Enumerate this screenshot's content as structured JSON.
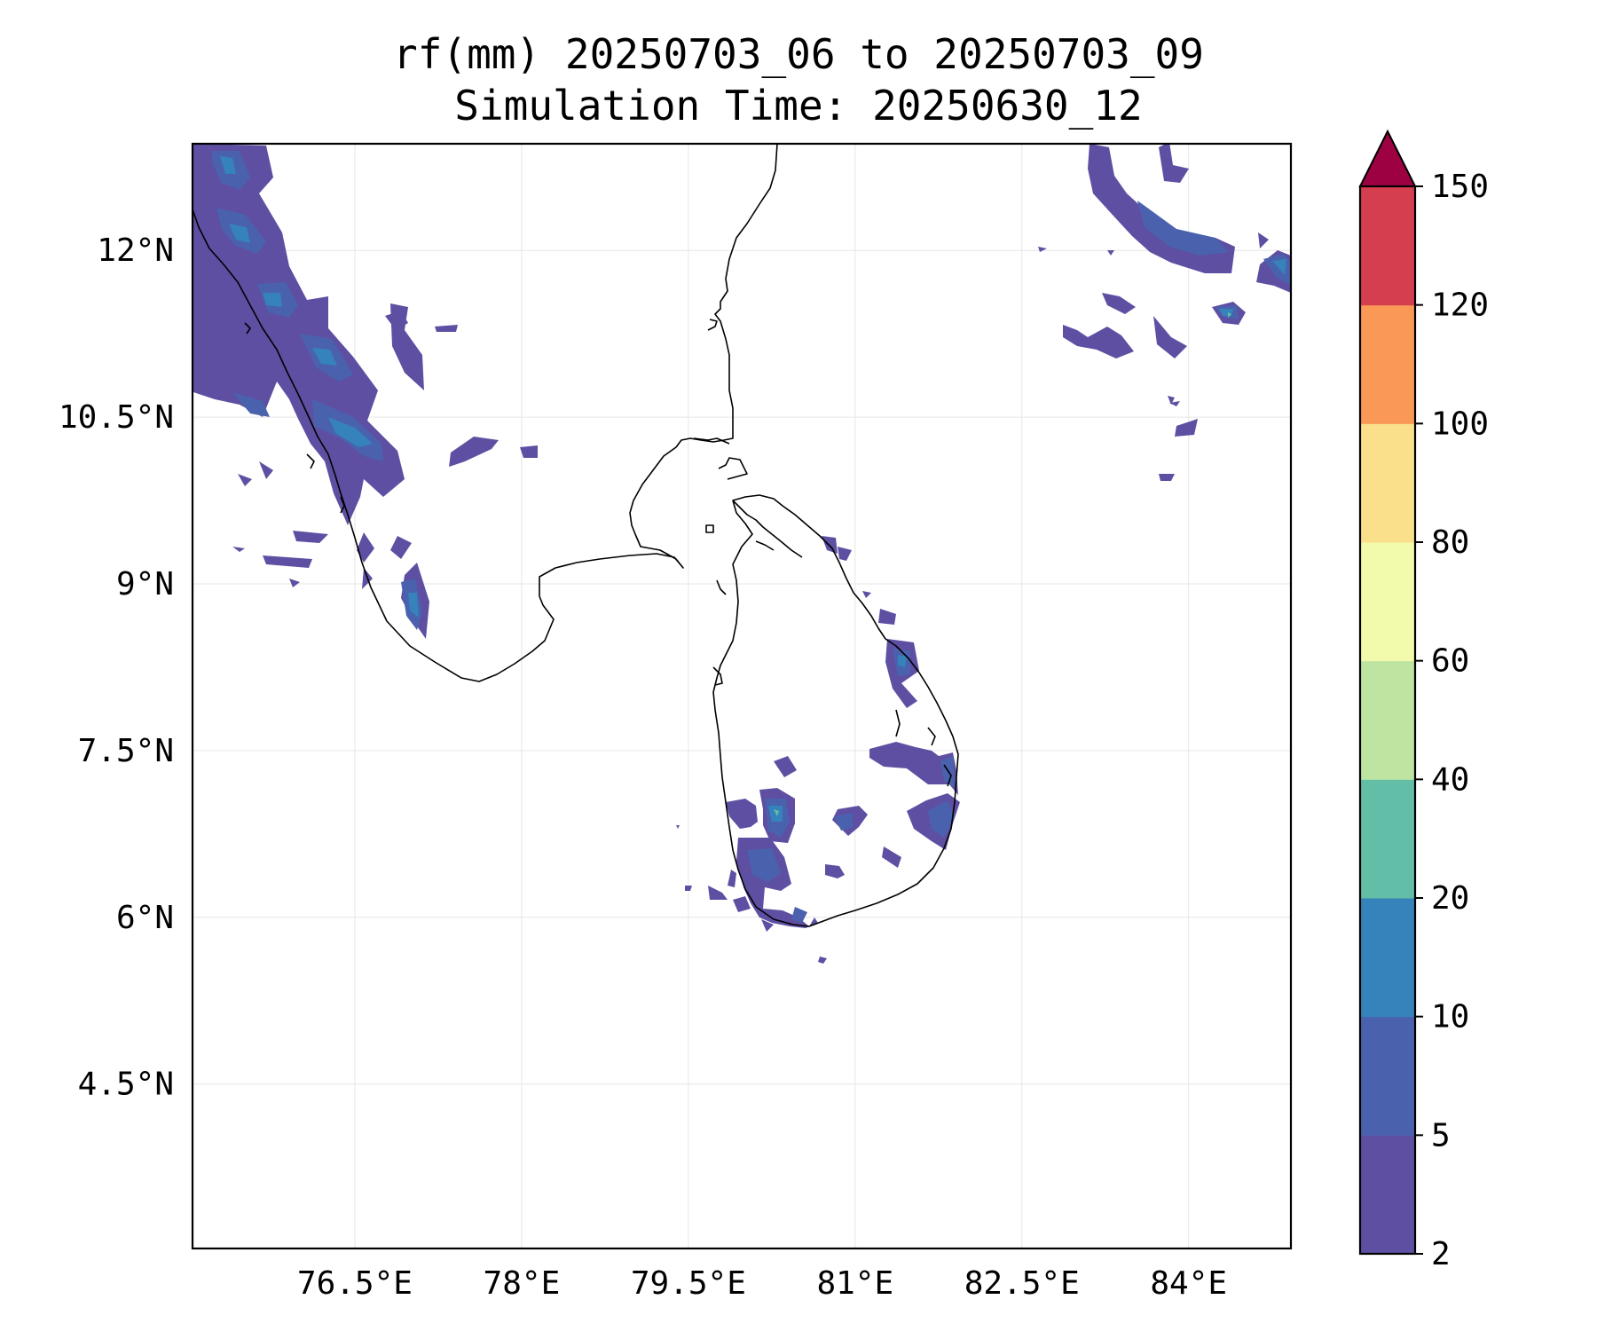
{
  "title": {
    "line1": "rf(mm) 20250703_06 to 20250703_09",
    "line2": "Simulation Time: 20250630_12"
  },
  "map": {
    "lon_ticks": [
      "76.5°E",
      "78°E",
      "79.5°E",
      "81°E",
      "82.5°E",
      "84°E"
    ],
    "lat_ticks": [
      "12°N",
      "10.5°N",
      "9°N",
      "7.5°N",
      "6°N",
      "4.5°N"
    ],
    "lon_tick_values": [
      76.5,
      78,
      79.5,
      81,
      82.5,
      84
    ],
    "lat_tick_values": [
      12,
      10.5,
      9,
      7.5,
      6,
      4.5
    ],
    "lon_range": [
      75.04,
      84.92
    ],
    "lat_range": [
      3.02,
      12.96
    ],
    "gridlines": true,
    "coastline_color": "#000000"
  },
  "colorbar": {
    "levels": [
      "2",
      "5",
      "10",
      "20",
      "40",
      "60",
      "80",
      "100",
      "120",
      "150"
    ],
    "colors": [
      "#5e4fa2",
      "#4a62ad",
      "#3682ba",
      "#62bea6",
      "#bde4a0",
      "#f2faac",
      "#fbe08c",
      "#fa9856",
      "#d53e4f"
    ],
    "extend_color": "#9e0142",
    "extend": "max"
  }
}
